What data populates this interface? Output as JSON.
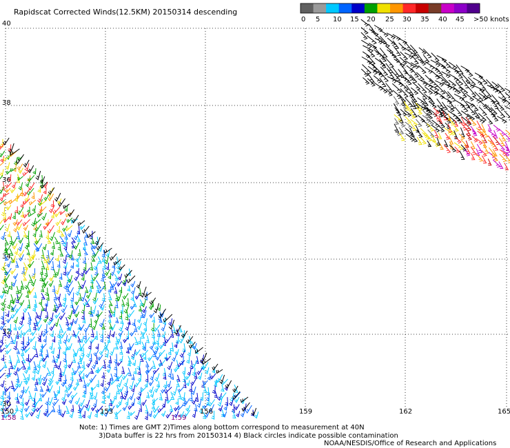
{
  "title": "Rapidscat Corrected Winds(12.5KM) 20150314 descending",
  "legend": {
    "colors": [
      "#606060",
      "#9a9a9a",
      "#00c8ff",
      "#0064ff",
      "#0000c8",
      "#00a000",
      "#f0e000",
      "#ff9600",
      "#ff2828",
      "#c80000",
      "#783c28",
      "#c800c8",
      "#8c00c8",
      "#50008c"
    ],
    "labels": [
      "0",
      "5",
      "10",
      "15",
      "20",
      "25",
      "30",
      "35",
      "40",
      "45",
      ">50 knots"
    ]
  },
  "lat_labels": [
    "40",
    "38",
    "36",
    "34",
    "32",
    "30"
  ],
  "lon_labels": [
    "150",
    "153",
    "156",
    "159",
    "162",
    "165"
  ],
  "time_labels": [
    "1:58",
    "1:59"
  ],
  "notes": [
    "Note: 1) Times are GMT 2)Times along bottom correspond to measurement at 40N",
    "3)Data buffer is 22 hrs from 20150314 4) Black circles indicate possible contamination",
    "NOAA/NESDIS/Office of Research and Applications"
  ]
}
